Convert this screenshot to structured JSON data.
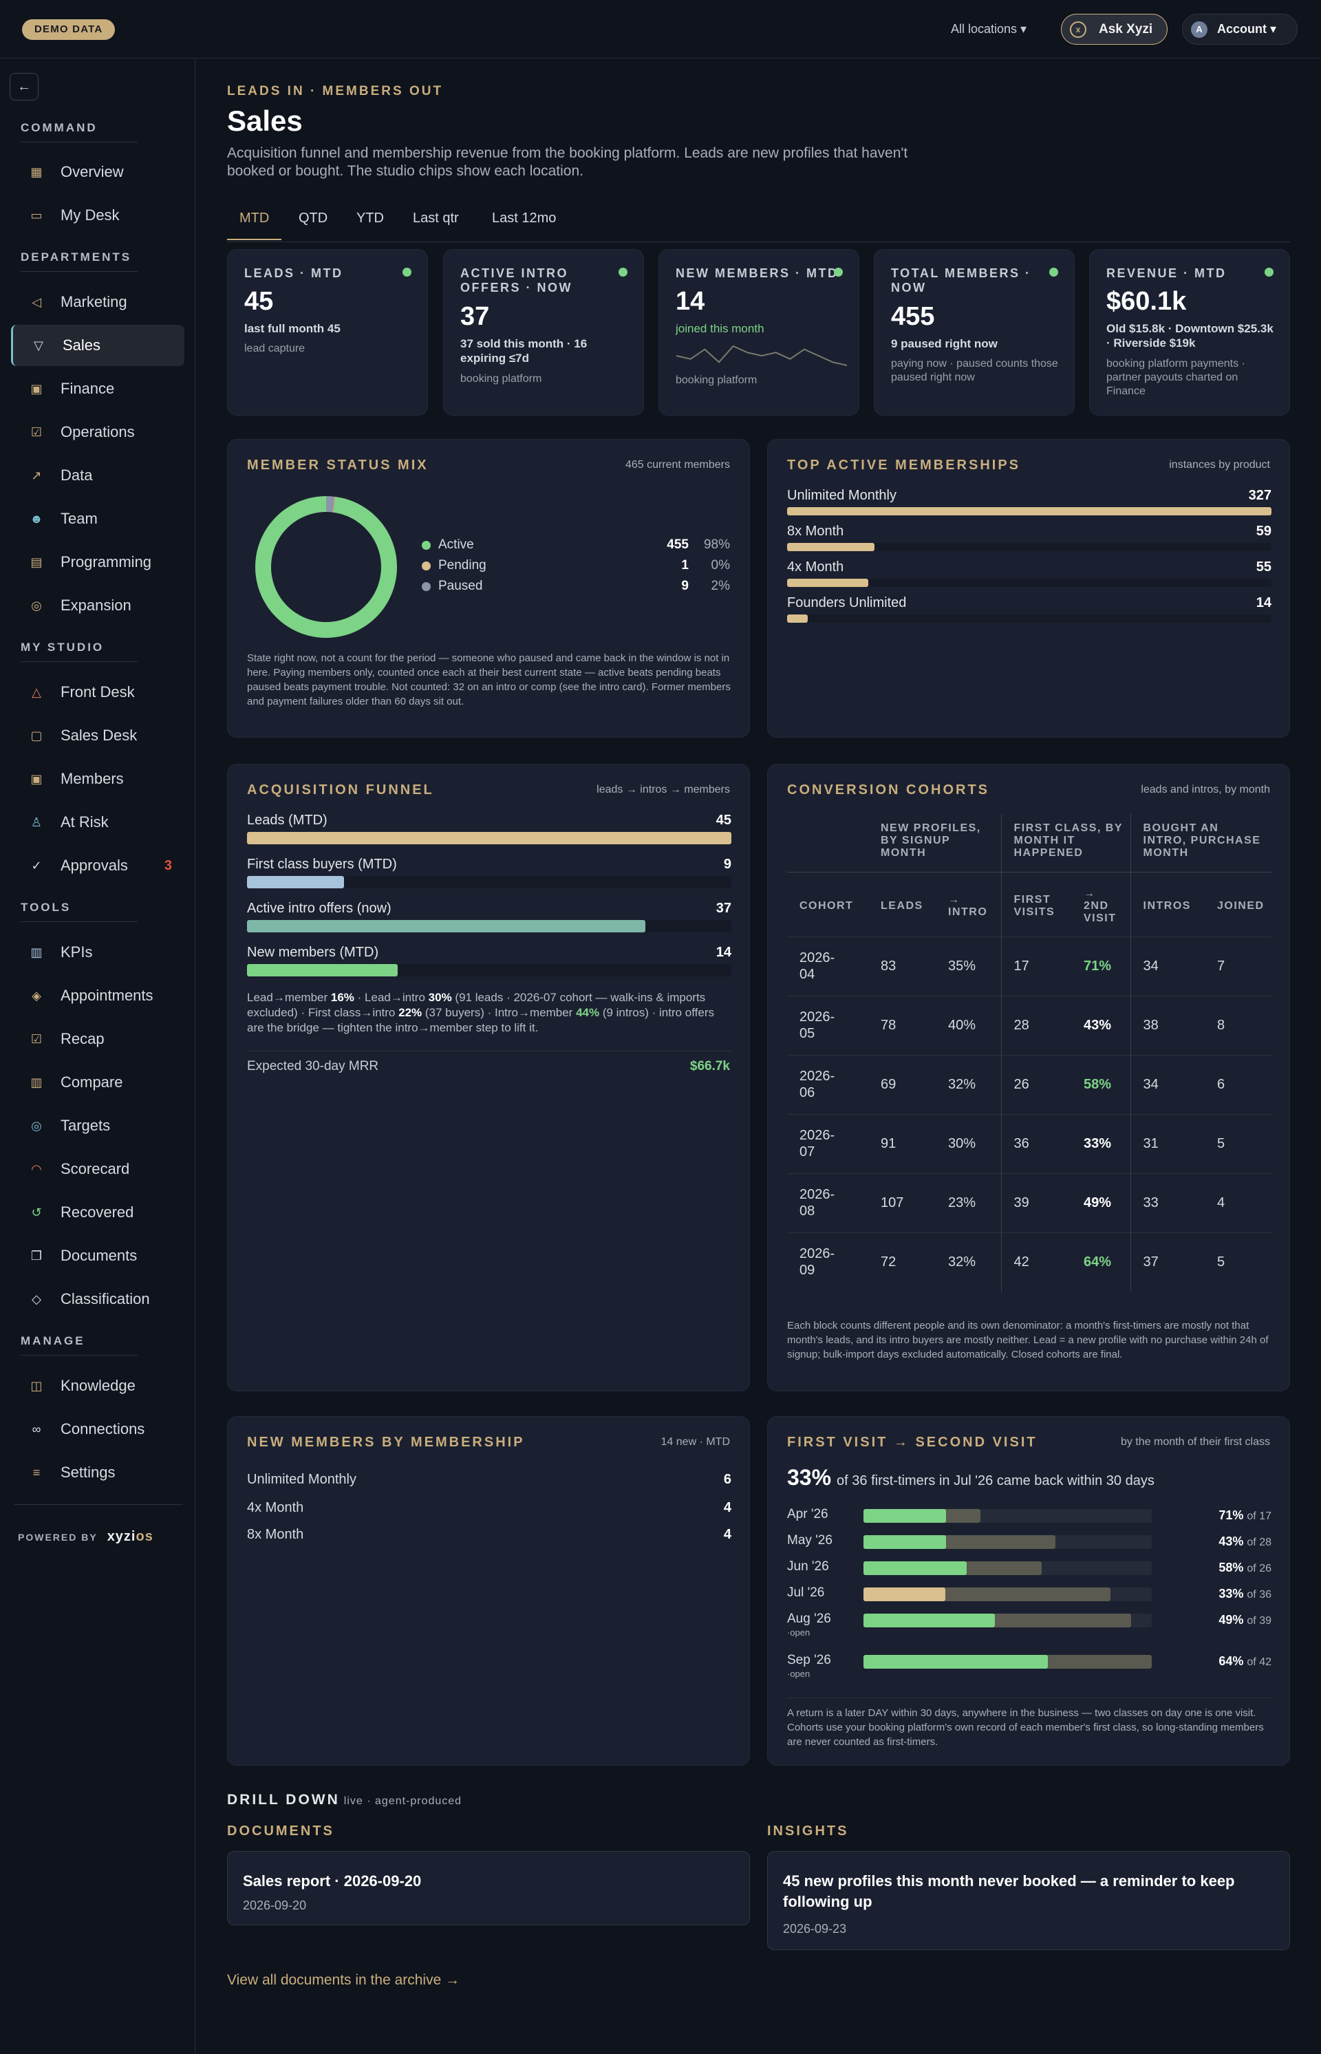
{
  "topbar": {
    "demo_badge": "DEMO DATA",
    "locations": "All locations ▾",
    "ask_label": "Ask Xyzi",
    "ask_icon": "x",
    "account_initial": "A",
    "account_label": "Account ▾"
  },
  "sidebar": {
    "back_icon": "←",
    "sections": {
      "command": "COMMAND",
      "departments": "DEPARTMENTS",
      "my_studio": "MY STUDIO",
      "tools": "TOOLS",
      "manage": "MANAGE"
    },
    "items": {
      "overview": "Overview",
      "my_desk": "My Desk",
      "marketing": "Marketing",
      "sales": "Sales",
      "finance": "Finance",
      "operations": "Operations",
      "data": "Data",
      "team": "Team",
      "programming": "Programming",
      "expansion": "Expansion",
      "front_desk": "Front Desk",
      "sales_desk": "Sales Desk",
      "members": "Members",
      "at_risk": "At Risk",
      "approvals": "Approvals",
      "approvals_count": "3",
      "kpis": "KPIs",
      "appointments": "Appointments",
      "recap": "Recap",
      "compare": "Compare",
      "targets": "Targets",
      "scorecard": "Scorecard",
      "recovered": "Recovered",
      "documents": "Documents",
      "classification": "Classification",
      "knowledge": "Knowledge",
      "connections": "Connections",
      "settings": "Settings"
    },
    "powered_by": "POWERED BY",
    "brand_a": "xyzi",
    "brand_b": "os"
  },
  "header": {
    "kicker": "LEADS IN · MEMBERS OUT",
    "title": "Sales",
    "subtitle": "Acquisition funnel and membership revenue from the booking platform. Leads are new profiles that haven't booked or bought. The studio chips show each location."
  },
  "tabs": [
    "MTD",
    "QTD",
    "YTD",
    "Last qtr",
    "Last 12mo"
  ],
  "kpis": {
    "leads": {
      "label": "LEADS · MTD",
      "value": "45",
      "sub": "last full month 45",
      "src": "lead capture"
    },
    "intro": {
      "label": "ACTIVE INTRO OFFERS · NOW",
      "value": "37",
      "sub": "37 sold this month · 16 expiring ≤7d",
      "src": "booking platform"
    },
    "newmem": {
      "label": "NEW MEMBERS · MTD",
      "value": "14",
      "sub": "joined this month",
      "src": "booking platform",
      "spark": [
        6,
        5,
        8,
        4,
        9,
        7,
        6,
        7,
        5,
        8,
        6,
        4,
        3
      ]
    },
    "total": {
      "label": "TOTAL MEMBERS · NOW",
      "value": "455",
      "sub": "9 paused right now",
      "src": "paying now · paused counts those paused right now"
    },
    "revenue": {
      "label": "REVENUE · MTD",
      "value": "$60.1k",
      "sub": "Old $15.8k · Downtown $25.3k · Riverside $19k",
      "src": "booking platform payments · partner payouts charted on Finance"
    }
  },
  "status_mix": {
    "title": "MEMBER STATUS MIX",
    "note": "465 current members",
    "rows": [
      {
        "name": "Active",
        "value": "455",
        "pct": "98%",
        "color": "#7dd487"
      },
      {
        "name": "Pending",
        "value": "1",
        "pct": "0%",
        "color": "#d9c08e"
      },
      {
        "name": "Paused",
        "value": "9",
        "pct": "2%",
        "color": "#8a96a8"
      }
    ],
    "footnote": "State right now, not a count for the period — someone who paused and came back in the window is not in here. Paying members only, counted once each at their best current state — active beats pending beats paused beats payment trouble. Not counted: 32 on an intro or comp (see the intro card). Former members and payment failures older than 60 days sit out."
  },
  "top_memberships": {
    "title": "TOP ACTIVE MEMBERSHIPS",
    "note": "instances by product",
    "max": 327,
    "rows": [
      {
        "name": "Unlimited Monthly",
        "value": 327
      },
      {
        "name": "8x Month",
        "value": 59
      },
      {
        "name": "4x Month",
        "value": 55
      },
      {
        "name": "Founders Unlimited",
        "value": 14
      }
    ]
  },
  "funnel": {
    "title": "ACQUISITION FUNNEL",
    "note": "leads → intros → members",
    "max": 45,
    "rows": [
      {
        "name": "Leads (MTD)",
        "value": 45,
        "color": "#d9c08e"
      },
      {
        "name": "First class buyers (MTD)",
        "value": 9,
        "color": "#a8c3dc"
      },
      {
        "name": "Active intro offers (now)",
        "value": 37,
        "color": "#7fb7a8"
      },
      {
        "name": "New members (MTD)",
        "value": 14,
        "color": "#7dd487"
      }
    ],
    "conv": {
      "t1": "Lead→member ",
      "p1": "16%",
      "t2": " · Lead→intro ",
      "p2": "30%",
      "t3": " (91 leads · 2026-07 cohort — walk-ins & imports excluded) · First class→intro ",
      "p3": "22%",
      "t4": " (37 buyers) · Intro→member ",
      "p4": "44%",
      "t5": " (9 intros) · intro offers are the bridge — tighten the intro→member step to lift it."
    },
    "mrr_label": "Expected 30-day MRR",
    "mrr_value": "$66.7k"
  },
  "cohorts": {
    "title": "CONVERSION COHORTS",
    "note": "leads and intros, by month",
    "group_heads": [
      "NEW PROFILES, BY SIGNUP MONTH",
      "FIRST CLASS, BY MONTH IT HAPPENED",
      "BOUGHT AN INTRO, PURCHASE MONTH"
    ],
    "col_heads": [
      "COHORT",
      "LEADS",
      "→ INTRO",
      "FIRST VISITS",
      "→ 2ND VISIT",
      "INTROS",
      "JOINED"
    ],
    "rows": [
      [
        "2026-04",
        "83",
        "35%",
        "17",
        "71%",
        "34",
        "7"
      ],
      [
        "2026-05",
        "78",
        "40%",
        "28",
        "43%",
        "38",
        "8"
      ],
      [
        "2026-06",
        "69",
        "32%",
        "26",
        "58%",
        "34",
        "6"
      ],
      [
        "2026-07",
        "91",
        "30%",
        "36",
        "33%",
        "31",
        "5"
      ],
      [
        "2026-08",
        "107",
        "23%",
        "39",
        "49%",
        "33",
        "4"
      ],
      [
        "2026-09",
        "72",
        "32%",
        "42",
        "64%",
        "37",
        "5"
      ]
    ],
    "highlight": [
      true,
      false,
      true,
      false,
      false,
      true
    ],
    "footnote": "Each block counts different people and its own denominator: a month's first-timers are mostly not that month's leads, and its intro buyers are mostly neither. Lead = a new profile with no purchase within 24h of signup; bulk-import days excluded automatically. Closed cohorts are final."
  },
  "new_by_membership": {
    "title": "NEW MEMBERS BY MEMBERSHIP",
    "note": "14 new · MTD",
    "rows": [
      {
        "name": "Unlimited Monthly",
        "value": "6"
      },
      {
        "name": "4x Month",
        "value": "4"
      },
      {
        "name": "8x Month",
        "value": "4"
      }
    ]
  },
  "first_second": {
    "title": "FIRST VISIT → SECOND VISIT",
    "note": "by the month of their first class",
    "headline_pct": "33%",
    "headline_rest": "of 36 first-timers in Jul '26 came back within 30 days",
    "rows": [
      {
        "month": "Apr '26",
        "open": "",
        "rate": 0.71,
        "first": 17,
        "pct": "71%",
        "of": "of 17",
        "color": "#7dd487"
      },
      {
        "month": "May '26",
        "open": "",
        "rate": 0.43,
        "first": 28,
        "pct": "43%",
        "of": "of 28",
        "color": "#7dd487"
      },
      {
        "month": "Jun '26",
        "open": "",
        "rate": 0.58,
        "first": 26,
        "pct": "58%",
        "of": "of 26",
        "color": "#7dd487"
      },
      {
        "month": "Jul '26",
        "open": "",
        "rate": 0.33,
        "first": 36,
        "pct": "33%",
        "of": "of 36",
        "color": "#d9c08e"
      },
      {
        "month": "Aug '26",
        "open": "·open",
        "rate": 0.49,
        "first": 39,
        "pct": "49%",
        "of": "of 39",
        "color": "#7dd487"
      },
      {
        "month": "Sep '26",
        "open": "·open",
        "rate": 0.64,
        "first": 42,
        "pct": "64%",
        "of": "of 42",
        "color": "#7dd487"
      }
    ],
    "footnote": "A return is a later DAY within 30 days, anywhere in the business — two classes on day one is one visit. Cohorts use your booking platform's own record of each member's first class, so long-standing members are never counted as first-timers."
  },
  "drill": {
    "title": "DRILL DOWN",
    "sub": "live · agent-produced",
    "documents_head": "DOCUMENTS",
    "insights_head": "INSIGHTS",
    "doc_title": "Sales report · 2026-09-20",
    "doc_date": "2026-09-20",
    "insight_title": "45 new profiles this month never booked — a reminder to keep following up",
    "insight_date": "2026-09-23",
    "archive_link": "View all documents in the archive →"
  }
}
